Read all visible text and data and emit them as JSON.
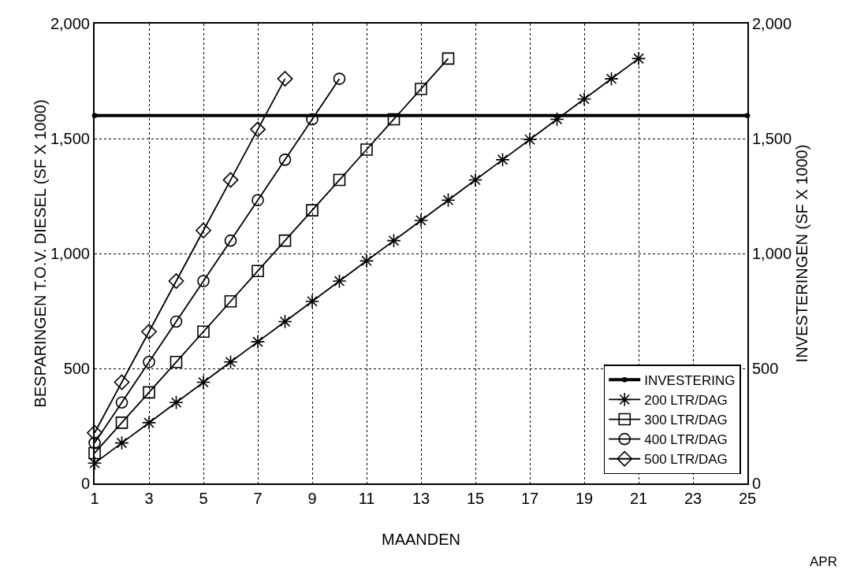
{
  "chart_data": {
    "type": "line",
    "xlabel": "MAANDEN",
    "ylabel": "BESPARINGEN T.O.V. DIESEL (SF X 1000)",
    "y2label": "INVESTERINGEN (SF X 1000)",
    "xlim": [
      1,
      25
    ],
    "xticks": [
      1,
      3,
      5,
      7,
      9,
      11,
      13,
      15,
      17,
      19,
      21,
      23,
      25
    ],
    "ylim": [
      0,
      2000
    ],
    "yticks": [
      0,
      500,
      {
        "value": 1000,
        "label": "1,000"
      },
      {
        "value": 1500,
        "label": "1,500"
      },
      {
        "value": 2000,
        "label": "2,000"
      }
    ],
    "y2lim": [
      0,
      2000
    ],
    "y2ticks": [
      0,
      500,
      {
        "value": 1000,
        "label": "1,000"
      },
      {
        "value": 1500,
        "label": "1,500"
      },
      {
        "value": 2000,
        "label": "2,000"
      }
    ],
    "grid": true,
    "legend": "bottom right",
    "line_style": "solid",
    "annotations": [
      "APR"
    ],
    "series": [
      {
        "name": "INVESTERING",
        "color": "#000000",
        "marker": "circle",
        "x": [
          1,
          25
        ],
        "values": [
          1600,
          1600
        ]
      },
      {
        "name": "200 LTR/DAG",
        "color": "#000000",
        "marker": "cross",
        "x": [
          1,
          2,
          3,
          4,
          5,
          6,
          7,
          8,
          9,
          10,
          11,
          12,
          13,
          14,
          15,
          16,
          17,
          18,
          19,
          20,
          21
        ],
        "values": [
          88,
          176,
          264,
          352,
          440,
          528,
          616,
          704,
          792,
          880,
          968,
          1056,
          1144,
          1232,
          1320,
          1408,
          1496,
          1584,
          1672,
          1760,
          1848
        ]
      },
      {
        "name": "300 LTR/DAG",
        "color": "#000000",
        "marker": "square",
        "x": [
          1,
          2,
          3,
          4,
          5,
          6,
          7,
          8,
          9,
          10,
          11,
          12,
          13,
          14
        ],
        "values": [
          132,
          264,
          396,
          528,
          660,
          792,
          924,
          1056,
          1188,
          1320,
          1452,
          1584,
          1716,
          1848
        ]
      },
      {
        "name": "400 LTR/DAG",
        "color": "#000000",
        "marker": "circle",
        "x": [
          1,
          2,
          3,
          4,
          5,
          6,
          7,
          8,
          9,
          10
        ],
        "values": [
          176,
          352,
          528,
          704,
          880,
          1056,
          1232,
          1408,
          1584,
          1760
        ]
      },
      {
        "name": "500 LTR/DAG",
        "color": "#000000",
        "marker": "diamond",
        "x": [
          1,
          2,
          3,
          4,
          5,
          6,
          7,
          8
        ],
        "values": [
          220,
          440,
          660,
          880,
          1100,
          1320,
          1540,
          1760
        ]
      }
    ]
  }
}
